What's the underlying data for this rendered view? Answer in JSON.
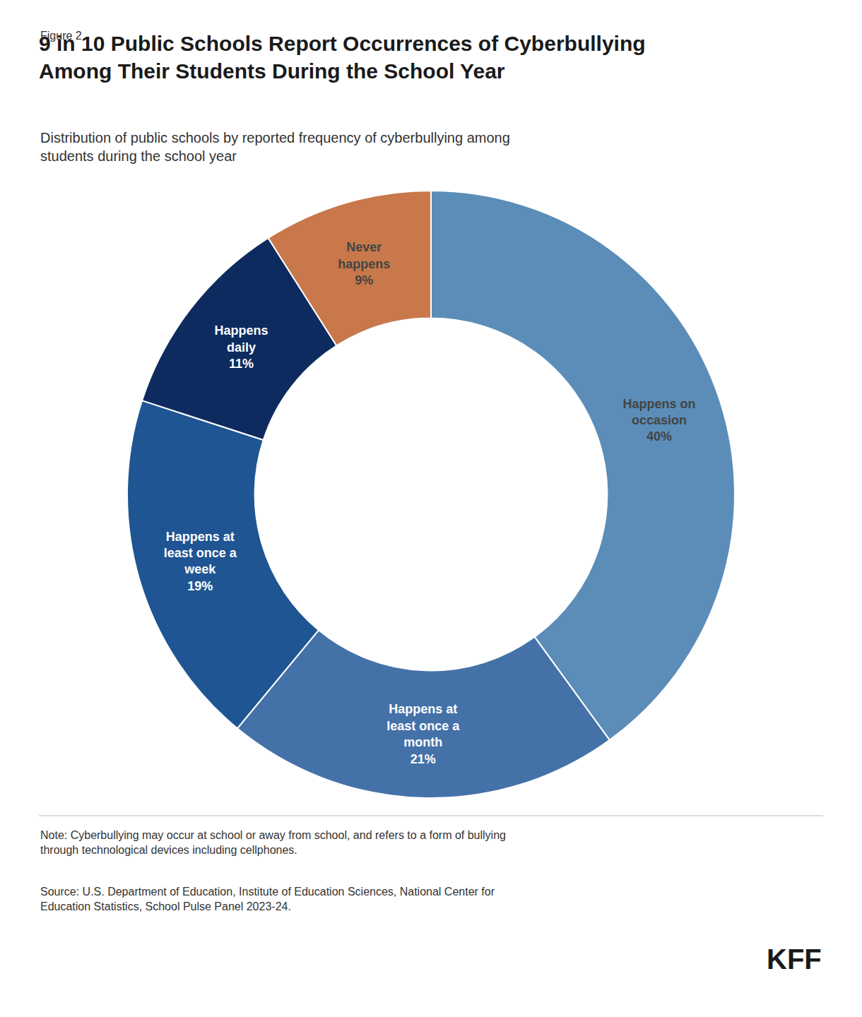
{
  "chart_data": {
    "type": "pie",
    "title": "9 in 10 Public Schools Report Occurrences of Cyberbullying\nAmong Their Students During the School Year",
    "subtitle": "Distribution of public schools by reported frequency of cyberbullying among\nstudents during the school year",
    "categories": [
      "Happens on\noccasion",
      "Happens at\nleast once a\nmonth",
      "Happens at\nleast once a\nweek",
      "Happens\ndaily",
      "Never\nhappens"
    ],
    "values": [
      40,
      21,
      19,
      11,
      9
    ],
    "value_labels": [
      "40%",
      "21%",
      "19%",
      "11%",
      "9%"
    ],
    "colors": [
      "#5b8db8",
      "#4472a8",
      "#1f5592",
      "#0d2b5e",
      "#c8784a"
    ],
    "data_labels": true,
    "annotations": [
      "Figure 2",
      "Note: Cyberbullying may occur at school or away from school, and refers to a form of bullying\nthrough technological devices including cellphones.",
      "Source: U.S. Department of Education, Institute of Education Sciences, National Center for\nEducation Statistics, School Pulse Panel 2023-24.",
      "KFF"
    ]
  }
}
